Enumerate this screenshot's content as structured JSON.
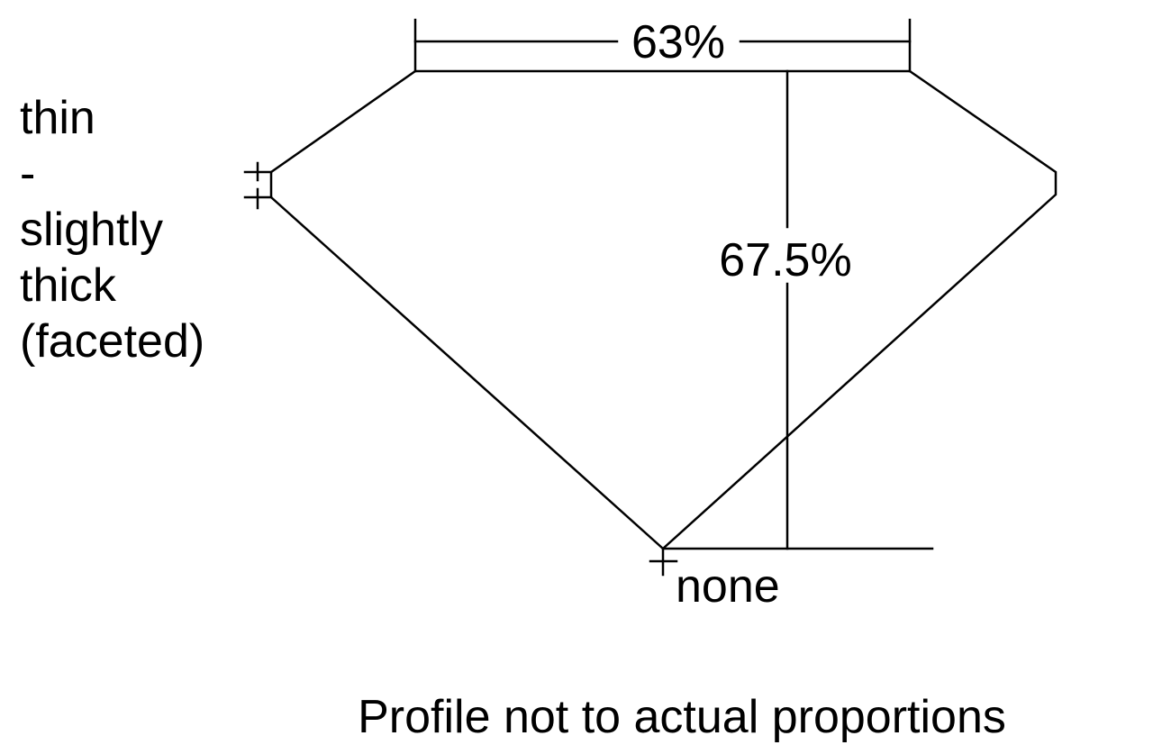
{
  "diagram": {
    "table_percent": "63%",
    "depth_percent": "67.5%",
    "girdle_label": [
      "thin",
      "-",
      "slightly",
      "thick",
      "(faceted)"
    ],
    "culet_label": "none",
    "caption": "Profile not to actual proportions",
    "line_color": "#000000",
    "background": "#ffffff"
  }
}
